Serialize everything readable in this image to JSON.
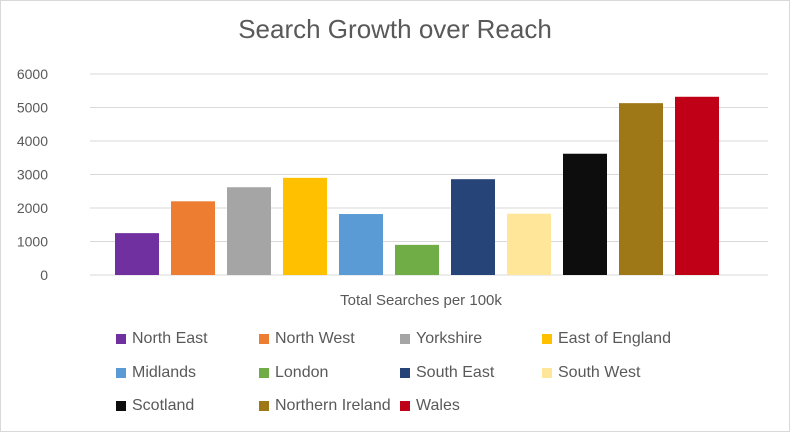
{
  "chart_data": {
    "type": "bar",
    "title": "Search Growth over Reach",
    "xlabel": "Total Searches per 100k",
    "ylabel": "",
    "ylim": [
      0,
      6000
    ],
    "yticks": [
      0,
      1000,
      2000,
      3000,
      4000,
      5000,
      6000
    ],
    "grid": true,
    "legend_position": "bottom",
    "categories": [
      "Total Searches per 100k"
    ],
    "series": [
      {
        "name": "North East",
        "values": [
          1250
        ],
        "color": "#7030a0"
      },
      {
        "name": "North West",
        "values": [
          2200
        ],
        "color": "#ed7d31"
      },
      {
        "name": "Yorkshire",
        "values": [
          2620
        ],
        "color": "#a5a5a5"
      },
      {
        "name": "East of England",
        "values": [
          2900
        ],
        "color": "#ffc000"
      },
      {
        "name": "Midlands",
        "values": [
          1820
        ],
        "color": "#5b9bd5"
      },
      {
        "name": "London",
        "values": [
          900
        ],
        "color": "#70ad47"
      },
      {
        "name": "South East",
        "values": [
          2860
        ],
        "color": "#264478"
      },
      {
        "name": "South West",
        "values": [
          1830
        ],
        "color": "#ffe699"
      },
      {
        "name": "Scotland",
        "values": [
          3620
        ],
        "color": "#0d0d0d"
      },
      {
        "name": "Northern Ireland",
        "values": [
          5130
        ],
        "color": "#9e7717"
      },
      {
        "name": "Wales",
        "values": [
          5320
        ],
        "color": "#c00016"
      }
    ]
  }
}
